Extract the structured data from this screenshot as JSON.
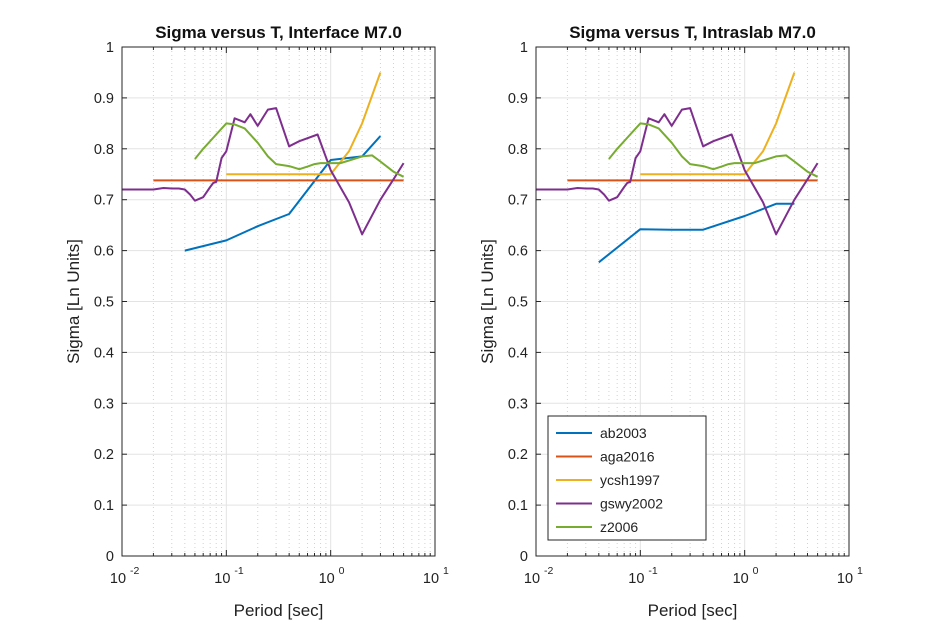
{
  "colors": {
    "ab2003": "#0072BD",
    "aga2016": "#D95319",
    "ycsh1997": "#EDB120",
    "gswy2002": "#7E2F8E",
    "z2006": "#77AC30"
  },
  "chart_data": [
    {
      "type": "line",
      "title": "Sigma versus T, Interface M7.0",
      "xlabel": "Period [sec]",
      "ylabel": "Sigma [Ln Units]",
      "xscale": "log",
      "xlim": [
        0.01,
        10
      ],
      "ylim": [
        0,
        1
      ],
      "grid": true,
      "xticks": [
        {
          "base": "10",
          "exp": "-2"
        },
        {
          "base": "10",
          "exp": "-1"
        },
        {
          "base": "10",
          "exp": "0"
        },
        {
          "base": "10",
          "exp": "1"
        }
      ],
      "yticks": [
        "0",
        "0.1",
        "0.2",
        "0.3",
        "0.4",
        "0.5",
        "0.6",
        "0.7",
        "0.8",
        "0.9",
        "1"
      ],
      "series": [
        {
          "name": "ab2003",
          "x": [
            0.04,
            0.1,
            0.2,
            0.4,
            1.0,
            2.0,
            3.0
          ],
          "y": [
            0.6,
            0.62,
            0.648,
            0.672,
            0.778,
            0.785,
            0.825
          ]
        },
        {
          "name": "aga2016",
          "x": [
            0.02,
            5.0
          ],
          "y": [
            0.738,
            0.738
          ]
        },
        {
          "name": "ycsh1997",
          "x": [
            0.1,
            0.2,
            0.5,
            1.0,
            1.5,
            2.0,
            3.0
          ],
          "y": [
            0.75,
            0.75,
            0.75,
            0.75,
            0.795,
            0.85,
            0.95
          ]
        },
        {
          "name": "gswy2002",
          "x": [
            0.01,
            0.02,
            0.025,
            0.03,
            0.035,
            0.04,
            0.045,
            0.05,
            0.06,
            0.07,
            0.075,
            0.08,
            0.09,
            0.1,
            0.12,
            0.15,
            0.17,
            0.2,
            0.25,
            0.3,
            0.4,
            0.5,
            0.75,
            1.0,
            1.5,
            2.0,
            3.0,
            4.0,
            5.0
          ],
          "y": [
            0.72,
            0.72,
            0.723,
            0.722,
            0.722,
            0.72,
            0.71,
            0.698,
            0.705,
            0.725,
            0.733,
            0.735,
            0.782,
            0.795,
            0.86,
            0.852,
            0.868,
            0.845,
            0.877,
            0.88,
            0.805,
            0.815,
            0.828,
            0.758,
            0.695,
            0.632,
            0.7,
            0.74,
            0.772
          ]
        },
        {
          "name": "z2006",
          "x": [
            0.05,
            0.06,
            0.08,
            0.1,
            0.12,
            0.15,
            0.2,
            0.25,
            0.3,
            0.4,
            0.5,
            0.6,
            0.7,
            0.8,
            1.0,
            1.25,
            1.5,
            2.0,
            2.5,
            3.0,
            4.0,
            5.0
          ],
          "y": [
            0.78,
            0.8,
            0.828,
            0.85,
            0.848,
            0.84,
            0.812,
            0.785,
            0.77,
            0.766,
            0.76,
            0.765,
            0.77,
            0.772,
            0.772,
            0.772,
            0.777,
            0.785,
            0.787,
            0.775,
            0.755,
            0.745
          ]
        }
      ]
    },
    {
      "type": "line",
      "title": "Sigma versus T, Intraslab M7.0",
      "xlabel": "Period [sec]",
      "ylabel": "Sigma [Ln Units]",
      "xscale": "log",
      "xlim": [
        0.01,
        10
      ],
      "ylim": [
        0,
        1
      ],
      "grid": true,
      "legend": "bottom-left",
      "xticks": [
        {
          "base": "10",
          "exp": "-2"
        },
        {
          "base": "10",
          "exp": "-1"
        },
        {
          "base": "10",
          "exp": "0"
        },
        {
          "base": "10",
          "exp": "1"
        }
      ],
      "yticks": [
        "0",
        "0.1",
        "0.2",
        "0.3",
        "0.4",
        "0.5",
        "0.6",
        "0.7",
        "0.8",
        "0.9",
        "1"
      ],
      "series": [
        {
          "name": "ab2003",
          "x": [
            0.04,
            0.1,
            0.2,
            0.4,
            1.0,
            2.0,
            3.0
          ],
          "y": [
            0.577,
            0.642,
            0.641,
            0.641,
            0.668,
            0.692,
            0.692
          ]
        },
        {
          "name": "aga2016",
          "x": [
            0.02,
            5.0
          ],
          "y": [
            0.738,
            0.738
          ]
        },
        {
          "name": "ycsh1997",
          "x": [
            0.1,
            0.2,
            0.5,
            1.0,
            1.5,
            2.0,
            3.0
          ],
          "y": [
            0.75,
            0.75,
            0.75,
            0.75,
            0.795,
            0.85,
            0.95
          ]
        },
        {
          "name": "gswy2002",
          "x": [
            0.01,
            0.02,
            0.025,
            0.03,
            0.035,
            0.04,
            0.045,
            0.05,
            0.06,
            0.07,
            0.075,
            0.08,
            0.09,
            0.1,
            0.12,
            0.15,
            0.17,
            0.2,
            0.25,
            0.3,
            0.4,
            0.5,
            0.75,
            1.0,
            1.5,
            2.0,
            3.0,
            4.0,
            5.0
          ],
          "y": [
            0.72,
            0.72,
            0.723,
            0.722,
            0.722,
            0.72,
            0.71,
            0.698,
            0.705,
            0.725,
            0.733,
            0.735,
            0.782,
            0.795,
            0.86,
            0.852,
            0.868,
            0.845,
            0.877,
            0.88,
            0.805,
            0.815,
            0.828,
            0.758,
            0.695,
            0.632,
            0.7,
            0.74,
            0.772
          ]
        },
        {
          "name": "z2006",
          "x": [
            0.05,
            0.06,
            0.08,
            0.1,
            0.12,
            0.15,
            0.2,
            0.25,
            0.3,
            0.4,
            0.5,
            0.6,
            0.7,
            0.8,
            1.0,
            1.25,
            1.5,
            2.0,
            2.5,
            3.0,
            4.0,
            5.0
          ],
          "y": [
            0.78,
            0.8,
            0.828,
            0.85,
            0.848,
            0.84,
            0.812,
            0.785,
            0.77,
            0.766,
            0.76,
            0.765,
            0.77,
            0.772,
            0.772,
            0.772,
            0.777,
            0.785,
            0.787,
            0.775,
            0.755,
            0.745
          ]
        }
      ]
    }
  ]
}
